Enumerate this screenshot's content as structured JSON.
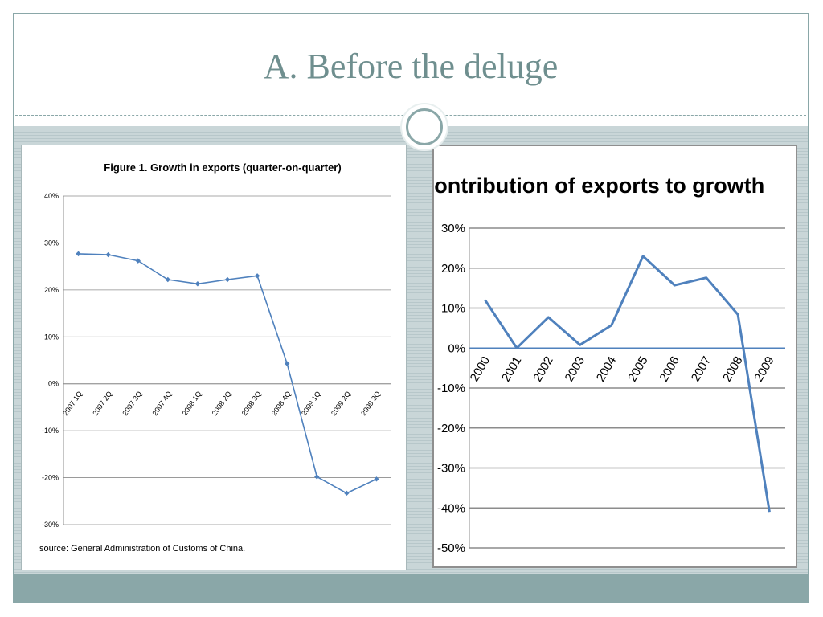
{
  "slide": {
    "title": "A.  Before the deluge"
  },
  "colors": {
    "accent": "#8aa7a8",
    "line": "#4f81bd",
    "grid": "#8c8c8c"
  },
  "chart_data": [
    {
      "type": "line",
      "title": "Figure 1.  Growth in exports  (quarter-on-quarter)",
      "categories": [
        "2007 1Q",
        "2007 2Q",
        "2007 3Q",
        "2007 4Q",
        "2008 1Q",
        "2008 2Q",
        "2008 3Q",
        "2008 4Q",
        "2009 1Q",
        "2009 2Q",
        "2009 3Q"
      ],
      "series": [
        {
          "values": [
            0.277,
            0.275,
            0.262,
            0.222,
            0.213,
            0.222,
            0.23,
            0.043,
            -0.198,
            -0.233,
            -0.203
          ]
        }
      ],
      "yticks": [
        "40%",
        "30%",
        "20%",
        "10%",
        "0%",
        "-10%",
        "-20%",
        "-30%"
      ],
      "ylim": [
        -0.3,
        0.4
      ],
      "grid": true,
      "xlabel": "",
      "ylabel": "",
      "source": "source:   General Administration of Customs of China."
    },
    {
      "type": "line",
      "title": "Contribution of exports to growth",
      "categories": [
        "2000",
        "2001",
        "2002",
        "2003",
        "2004",
        "2005",
        "2006",
        "2007",
        "2008",
        "2009"
      ],
      "series": [
        {
          "values": [
            0.12,
            0.0,
            0.077,
            0.008,
            0.057,
            0.23,
            0.157,
            0.176,
            0.084,
            -0.41
          ]
        }
      ],
      "yticks": [
        "30%",
        "20%",
        "10%",
        "0%",
        "-10%",
        "-20%",
        "-30%",
        "-40%",
        "-50%"
      ],
      "ylim": [
        -0.5,
        0.3
      ],
      "grid": true,
      "xlabel": "",
      "ylabel": ""
    }
  ]
}
